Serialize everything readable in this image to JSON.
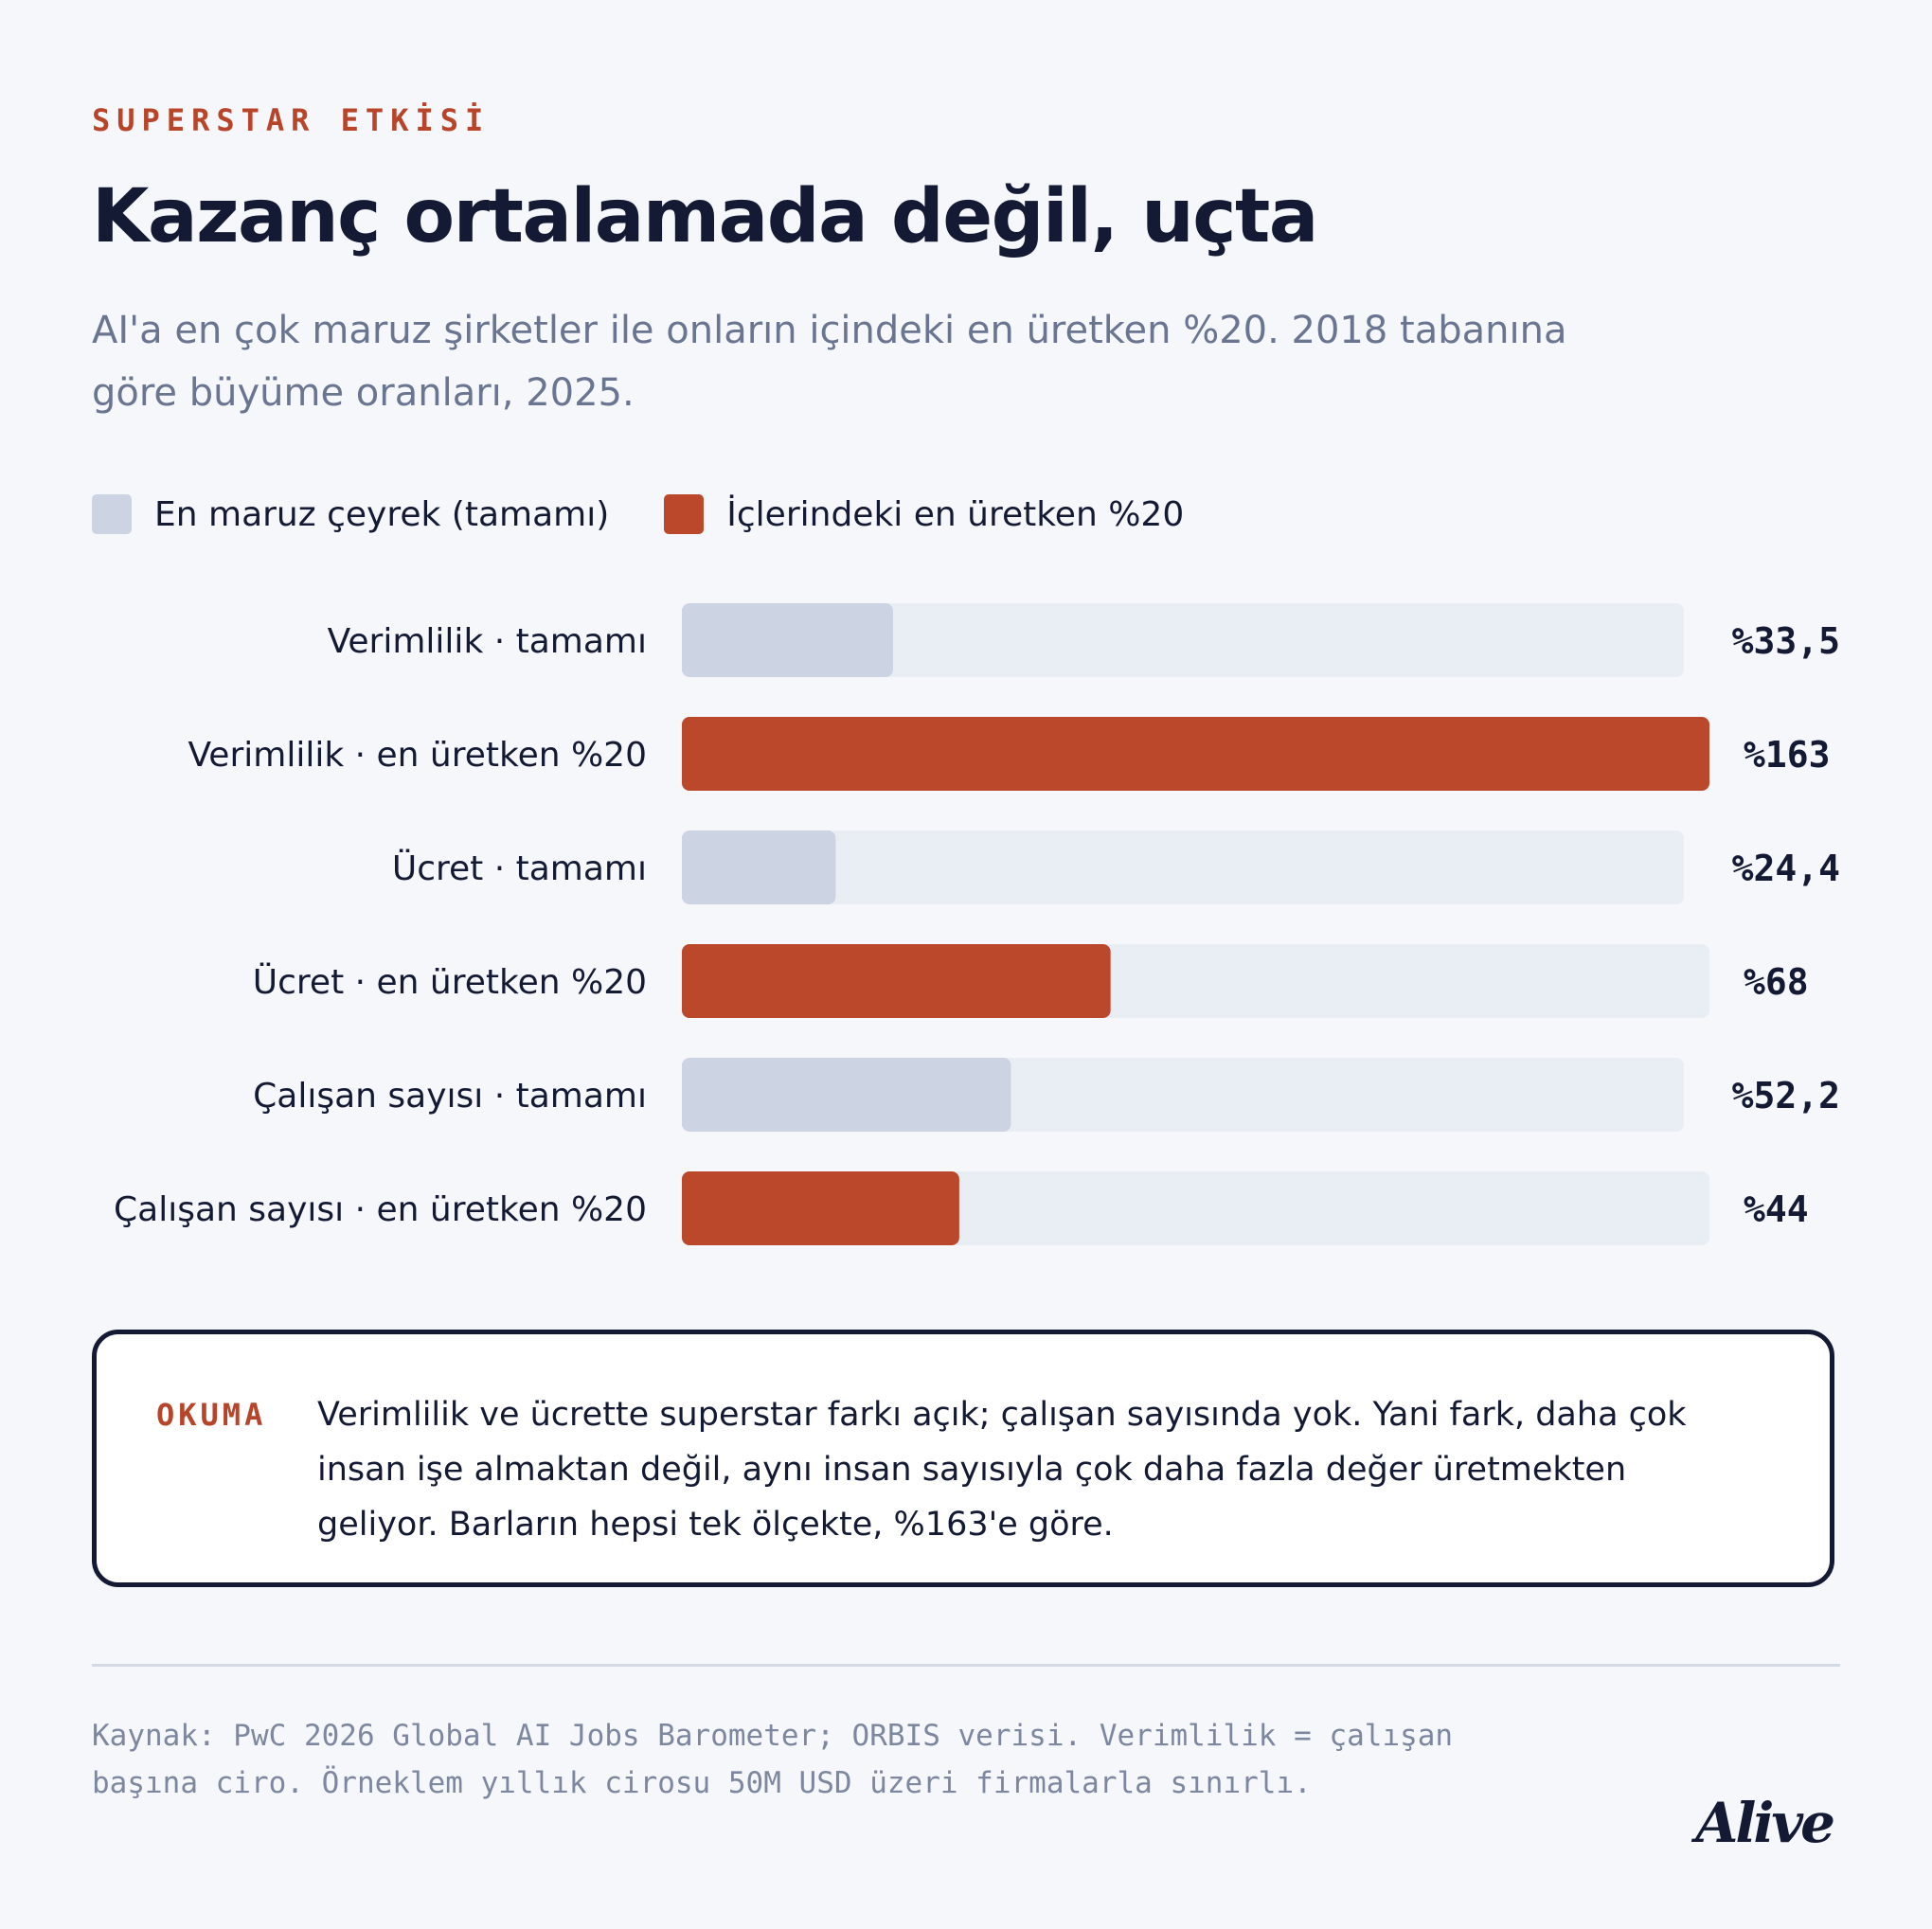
{
  "header": {
    "kicker": "SUPERSTAR ETKİSİ",
    "title": "Kazanç ortalamada değil, uçta",
    "subtitle": "AI'a en çok maruz şirketler ile onların içindeki en üretken %20. 2018 tabanına göre büyüme oranları, 2025."
  },
  "legend": {
    "all_label": "En maruz çeyrek (tamamı)",
    "top_label": "İçlerindeki en üretken %20"
  },
  "colors": {
    "all_bar": "#ccd3e2",
    "top_bar": "#bb482b",
    "track": "#e9edf4",
    "accent": "#b8452a",
    "ink": "#141a33"
  },
  "chart_data": {
    "type": "bar",
    "orientation": "horizontal",
    "categories": [
      "Verimlilik · tamamı",
      "Verimlilik · en üretken %20",
      "Ücret · tamamı",
      "Ücret · en üretken %20",
      "Çalışan sayısı · tamamı",
      "Çalışan sayısı · en üretken %20"
    ],
    "values": [
      33.5,
      163,
      24.4,
      68,
      52.2,
      44
    ],
    "value_labels": [
      "%33,5",
      "%163",
      "%24,4",
      "%68",
      "%52,2",
      "%44"
    ],
    "groups": [
      "all",
      "top",
      "all",
      "top",
      "all",
      "top"
    ],
    "xlim": [
      0,
      163
    ],
    "grid": false,
    "legend_position": "top-left"
  },
  "callout": {
    "tag": "OKUMA",
    "text": "Verimlilik ve ücrette superstar farkı açık; çalışan sayısında yok. Yani fark, daha çok insan işe almaktan değil, aynı insan sayısıyla çok daha fazla değer üretmekten geliyor. Barların hepsi tek ölçekte, %163'e göre."
  },
  "footer": {
    "source": "Kaynak: PwC 2026 Global AI Jobs Barometer; ORBIS verisi. Verimlilik = çalışan başına ciro. Örneklem yıllık cirosu 50M USD üzeri firmalarla sınırlı.",
    "brand": "Alive"
  }
}
